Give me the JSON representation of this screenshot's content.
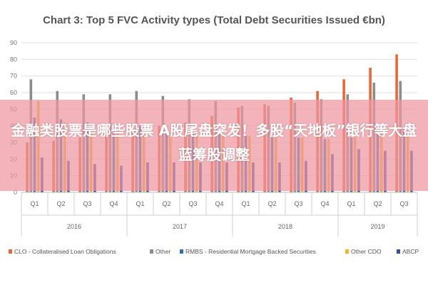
{
  "colors": {
    "CLO": "#e8683a",
    "Other": "#8c8c8c",
    "RMBS": "#2f6fb0",
    "OtherCDO": "#f3b431",
    "ABCP": "#3a4f9a",
    "grid": "#e0e0e0",
    "banner": "#ee96a0"
  },
  "overlay": {
    "text": "金融类股票是哪些股票 A股尾盘突发！多股“天地板”银行等大盘蓝筹股调整"
  },
  "chart_data": {
    "type": "bar",
    "title": "Chart 3: Top 5 FVC Activity types (Total Debt Securities Issued €bn)",
    "ylim": [
      0,
      90
    ],
    "yticks": [
      0,
      10,
      20,
      30,
      40,
      50,
      60,
      70,
      80,
      90
    ],
    "grid": true,
    "legend_position": "bottom",
    "categories": [
      "Q1",
      "Q2",
      "Q3",
      "Q4",
      "Q1",
      "Q2",
      "Q3",
      "Q4",
      "Q1",
      "Q2",
      "Q3",
      "Q4",
      "Q1",
      "Q2",
      "Q3"
    ],
    "years": [
      {
        "label": "2016",
        "start": 0,
        "end": 3
      },
      {
        "label": "2017",
        "start": 4,
        "end": 7
      },
      {
        "label": "2018",
        "start": 8,
        "end": 11
      },
      {
        "label": "2019",
        "start": 12,
        "end": 14
      }
    ],
    "series": [
      {
        "name": "CLO - Collateralised Loan Obligations",
        "color_key": "CLO",
        "values": [
          30,
          31,
          33,
          35,
          36,
          40,
          42,
          46,
          51,
          53,
          57,
          61,
          68,
          75,
          83
        ]
      },
      {
        "name": "Other",
        "color_key": "Other",
        "values": [
          68,
          61,
          59,
          59,
          61,
          58,
          56,
          55,
          52,
          52,
          54,
          56,
          59,
          66,
          67
        ]
      },
      {
        "name": "RMBS - Residential Mortgage Backed Securities",
        "color_key": "RMBS",
        "values": [
          45,
          44,
          42,
          40,
          40,
          38,
          37,
          35,
          34,
          33,
          33,
          32,
          33,
          36,
          38
        ]
      },
      {
        "name": "Other CDO",
        "color_key": "OtherCDO",
        "values": [
          55,
          42,
          37,
          36,
          38,
          36,
          34,
          34,
          34,
          33,
          33,
          32,
          33,
          35,
          36
        ]
      },
      {
        "name": "ABCP",
        "color_key": "ABCP",
        "values": [
          21,
          19,
          17,
          16,
          18,
          18,
          18,
          18,
          18,
          18,
          19,
          23,
          26,
          25,
          25
        ]
      }
    ]
  }
}
